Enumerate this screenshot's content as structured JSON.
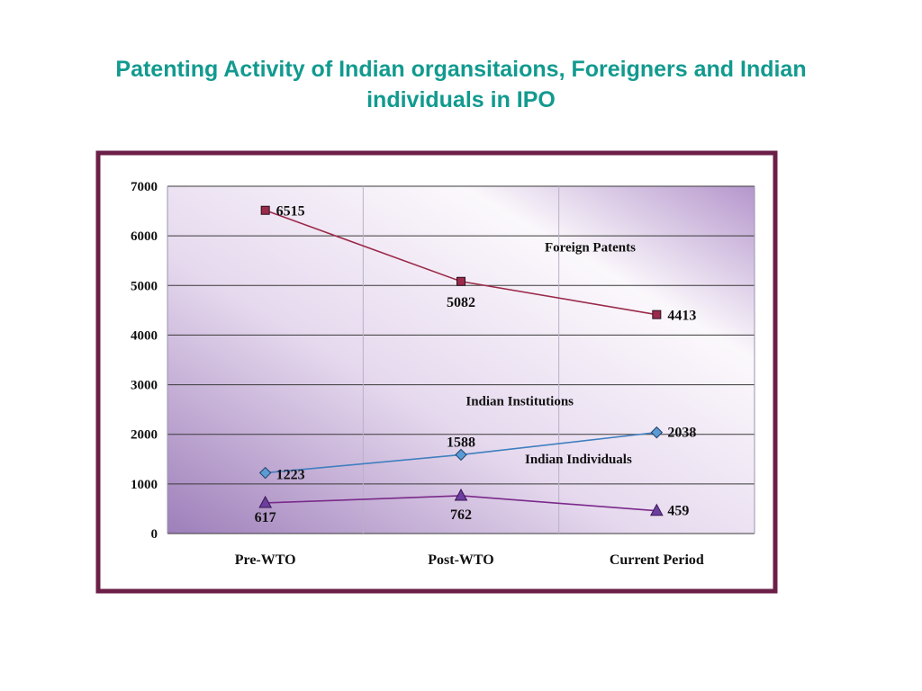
{
  "slide": {
    "title_line1": "Patenting Activity of Indian organsitaions, Foreigners and Indian",
    "title_line2": "individuals in IPO"
  },
  "colors": {
    "title": "#129a8f",
    "frame": "#6b1f47",
    "plot_light": "#fbf7fc",
    "plot_dark": "#a486bd",
    "foreign_series": "#9b2b4a",
    "institutions_series": "#3f7fbf",
    "individuals_series": "#7a2a8a",
    "institutions_marker": "#5b9bd5",
    "individuals_marker": "#6a3fa0"
  },
  "chart_data": {
    "type": "line",
    "title": "",
    "xlabel": "",
    "ylabel": "",
    "categories": [
      "Pre-WTO",
      "Post-WTO",
      "Current Period"
    ],
    "ylim": [
      0,
      7000
    ],
    "yticks": [
      0,
      1000,
      2000,
      3000,
      4000,
      5000,
      6000,
      7000
    ],
    "grid": true,
    "series": [
      {
        "name": "Foreign Patents",
        "values": [
          6515,
          5082,
          4413
        ],
        "marker": "square"
      },
      {
        "name": "Indian Institutions",
        "values": [
          1223,
          1588,
          2038
        ],
        "marker": "diamond"
      },
      {
        "name": "Indian Individuals",
        "values": [
          617,
          762,
          459
        ],
        "marker": "triangle"
      }
    ]
  }
}
